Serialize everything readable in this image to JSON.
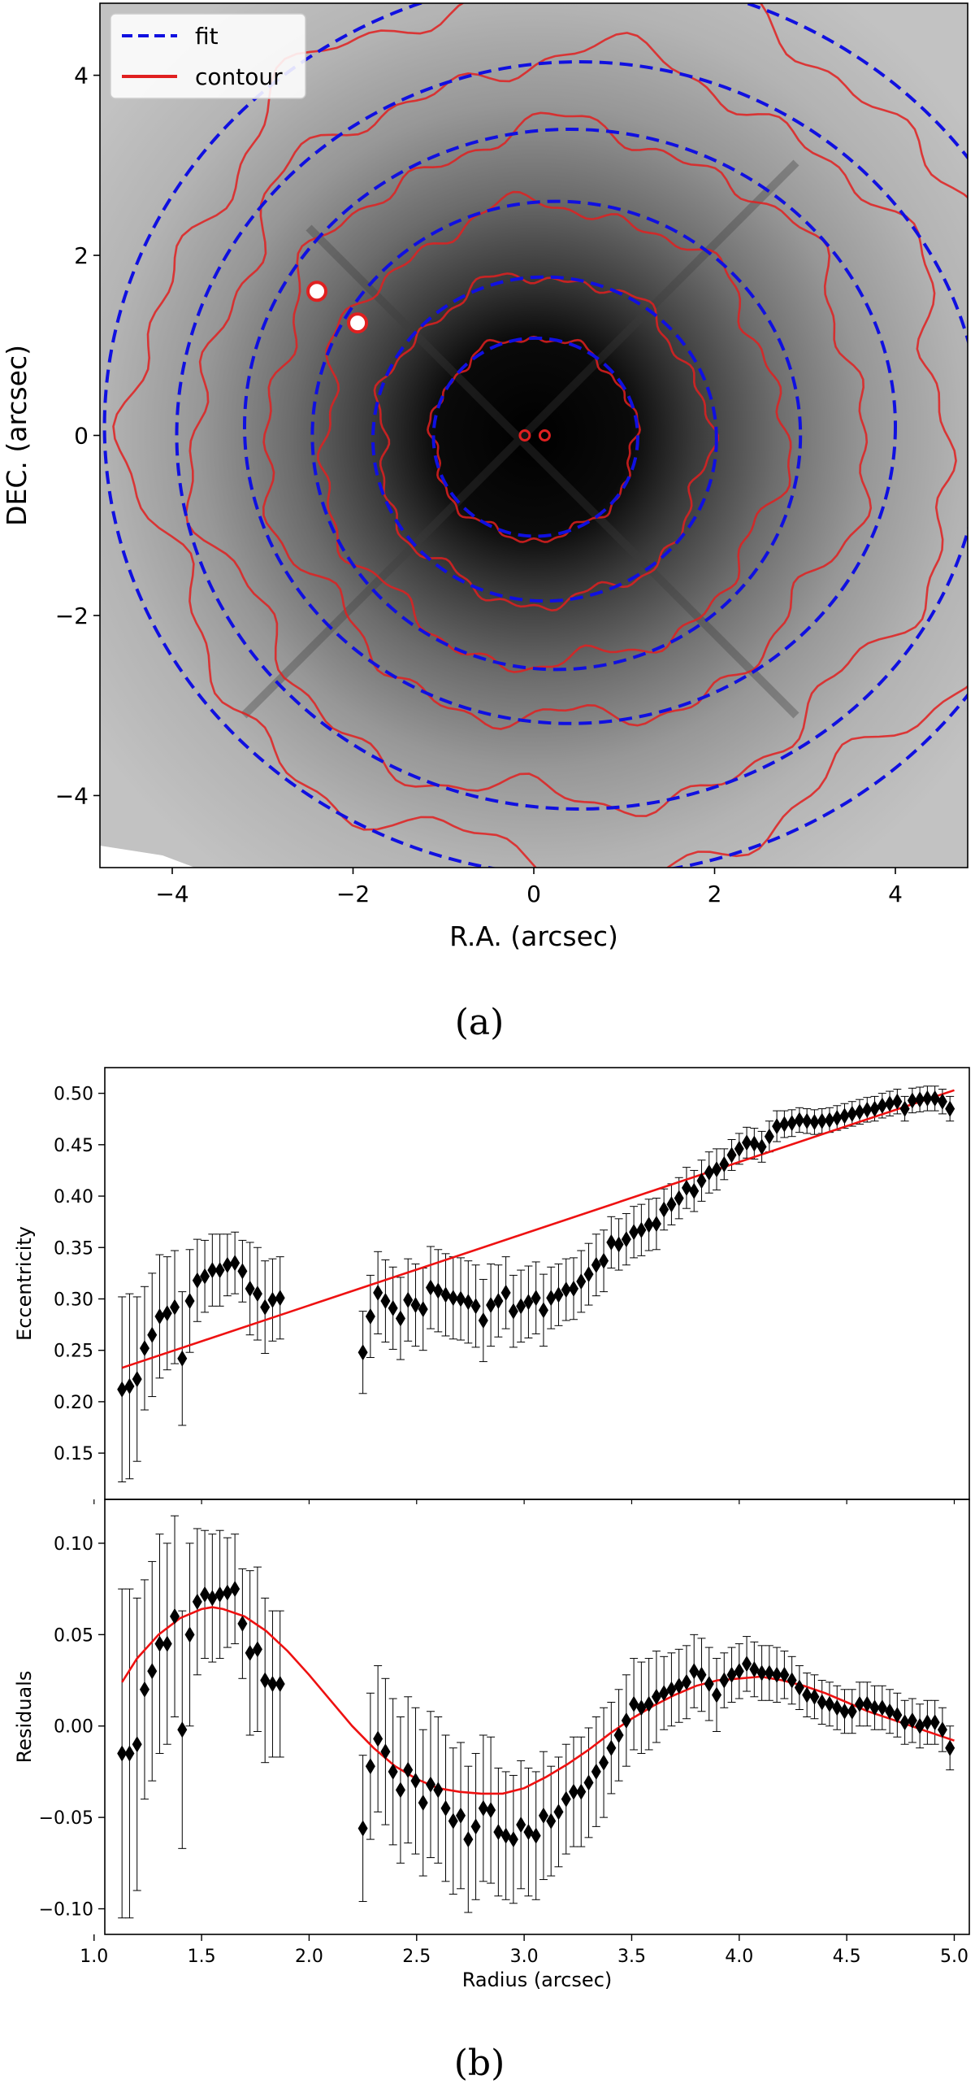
{
  "colors": {
    "fit": "#1010e0",
    "contour": "#e02020",
    "model": "#ee1111",
    "points": "#000000"
  },
  "panel_a": {
    "caption": "(a)",
    "legend": [
      {
        "label": "fit",
        "style": "dashed-blue"
      },
      {
        "label": "contour",
        "style": "solid-red"
      }
    ]
  },
  "panel_b": {
    "caption": "(b)"
  },
  "chart_data": [
    {
      "type": "image",
      "id": "image-map",
      "xlabel": "R.A. (arcsec)",
      "ylabel": "DEC. (arcsec)",
      "xlim": [
        -4.8,
        4.8
      ],
      "ylim": [
        -4.8,
        4.8
      ],
      "xticks": [
        -4,
        -2,
        0,
        2,
        4
      ],
      "yticks": [
        -4,
        -2,
        0,
        2,
        4
      ],
      "xtick_labels": [
        "−4",
        "−2",
        "0",
        "2",
        "4"
      ],
      "ytick_labels": [
        "−4",
        "−2",
        "0",
        "2",
        "4"
      ],
      "fit_ellipses": [
        {
          "cx": 0.02,
          "cy": -0.02,
          "a": 1.13,
          "b": 1.1
        },
        {
          "cx": 0.12,
          "cy": -0.04,
          "a": 1.9,
          "b": 1.8
        },
        {
          "cx": 0.25,
          "cy": 0.0,
          "a": 2.7,
          "b": 2.6
        },
        {
          "cx": 0.4,
          "cy": 0.1,
          "a": 3.6,
          "b": 3.3
        },
        {
          "cx": 0.5,
          "cy": 0.0,
          "a": 4.45,
          "b": 4.15
        },
        {
          "cx": 0.55,
          "cy": 0.1,
          "a": 5.3,
          "b": 5.0
        }
      ],
      "contour_levels": [
        {
          "cx": 0.0,
          "cy": -0.03,
          "r": 1.12
        },
        {
          "cx": 0.1,
          "cy": -0.05,
          "r": 1.82
        },
        {
          "cx": 0.2,
          "cy": 0.0,
          "r": 2.55
        },
        {
          "cx": 0.35,
          "cy": 0.1,
          "r": 3.3
        },
        {
          "cx": 0.45,
          "cy": 0.05,
          "r": 4.15
        },
        {
          "cx": 0.55,
          "cy": 0.1,
          "r": 4.9
        }
      ],
      "sources": [
        {
          "x": -2.4,
          "y": 1.6
        },
        {
          "x": -1.95,
          "y": 1.25
        },
        {
          "x": -0.1,
          "y": 0.0
        },
        {
          "x": 0.12,
          "y": 0.0
        }
      ]
    },
    {
      "type": "scatter",
      "id": "eccentricity",
      "ylabel": "Eccentricity",
      "xlim": [
        1.05,
        5.07
      ],
      "ylim": [
        0.105,
        0.525
      ],
      "yticks": [
        0.15,
        0.2,
        0.25,
        0.3,
        0.35,
        0.4,
        0.45,
        0.5
      ],
      "ytick_labels": [
        "0.15",
        "0.20",
        "0.25",
        "0.30",
        "0.35",
        "0.40",
        "0.45",
        "0.50"
      ],
      "model_line": {
        "x": [
          1.13,
          5.0
        ],
        "y": [
          0.233,
          0.503
        ]
      },
      "x": [
        1.13,
        1.165,
        1.2,
        1.235,
        1.27,
        1.305,
        1.34,
        1.375,
        1.41,
        1.445,
        1.48,
        1.515,
        1.55,
        1.585,
        1.62,
        1.655,
        1.69,
        1.725,
        1.76,
        1.795,
        1.83,
        1.865,
        2.25,
        2.285,
        2.32,
        2.355,
        2.39,
        2.425,
        2.46,
        2.495,
        2.53,
        2.565,
        2.6,
        2.635,
        2.67,
        2.705,
        2.74,
        2.775,
        2.81,
        2.845,
        2.88,
        2.915,
        2.95,
        2.985,
        3.02,
        3.055,
        3.09,
        3.125,
        3.16,
        3.195,
        3.23,
        3.265,
        3.3,
        3.335,
        3.37,
        3.405,
        3.44,
        3.475,
        3.51,
        3.545,
        3.58,
        3.615,
        3.65,
        3.685,
        3.72,
        3.755,
        3.79,
        3.825,
        3.86,
        3.895,
        3.93,
        3.965,
        4.0,
        4.035,
        4.07,
        4.105,
        4.14,
        4.175,
        4.21,
        4.245,
        4.28,
        4.315,
        4.35,
        4.385,
        4.42,
        4.455,
        4.49,
        4.525,
        4.56,
        4.595,
        4.63,
        4.665,
        4.7,
        4.735,
        4.77,
        4.805,
        4.84,
        4.875,
        4.91,
        4.945,
        4.98
      ],
      "y": [
        0.212,
        0.215,
        0.222,
        0.252,
        0.265,
        0.283,
        0.286,
        0.292,
        0.242,
        0.298,
        0.318,
        0.322,
        0.328,
        0.328,
        0.333,
        0.335,
        0.327,
        0.31,
        0.305,
        0.292,
        0.299,
        0.301,
        0.248,
        0.283,
        0.306,
        0.298,
        0.291,
        0.281,
        0.299,
        0.294,
        0.29,
        0.311,
        0.308,
        0.304,
        0.301,
        0.3,
        0.297,
        0.293,
        0.279,
        0.294,
        0.298,
        0.306,
        0.288,
        0.293,
        0.297,
        0.301,
        0.289,
        0.301,
        0.304,
        0.309,
        0.31,
        0.317,
        0.324,
        0.333,
        0.337,
        0.355,
        0.353,
        0.358,
        0.365,
        0.367,
        0.372,
        0.373,
        0.387,
        0.392,
        0.398,
        0.408,
        0.405,
        0.415,
        0.423,
        0.426,
        0.431,
        0.44,
        0.446,
        0.452,
        0.451,
        0.448,
        0.458,
        0.468,
        0.47,
        0.471,
        0.474,
        0.473,
        0.472,
        0.473,
        0.474,
        0.476,
        0.478,
        0.48,
        0.482,
        0.484,
        0.485,
        0.488,
        0.49,
        0.492,
        0.485,
        0.493,
        0.494,
        0.495,
        0.495,
        0.492,
        0.485
      ],
      "err": [
        0.09,
        0.09,
        0.08,
        0.06,
        0.06,
        0.06,
        0.055,
        0.055,
        0.065,
        0.05,
        0.04,
        0.035,
        0.035,
        0.035,
        0.03,
        0.03,
        0.03,
        0.045,
        0.045,
        0.045,
        0.04,
        0.04,
        0.04,
        0.04,
        0.04,
        0.04,
        0.04,
        0.04,
        0.04,
        0.04,
        0.04,
        0.04,
        0.04,
        0.04,
        0.04,
        0.04,
        0.04,
        0.04,
        0.04,
        0.04,
        0.035,
        0.035,
        0.035,
        0.035,
        0.035,
        0.035,
        0.035,
        0.03,
        0.03,
        0.03,
        0.03,
        0.03,
        0.03,
        0.03,
        0.03,
        0.025,
        0.025,
        0.025,
        0.025,
        0.025,
        0.025,
        0.025,
        0.02,
        0.02,
        0.02,
        0.02,
        0.02,
        0.02,
        0.02,
        0.02,
        0.015,
        0.015,
        0.015,
        0.015,
        0.015,
        0.015,
        0.015,
        0.015,
        0.013,
        0.013,
        0.012,
        0.012,
        0.012,
        0.012,
        0.012,
        0.012,
        0.012,
        0.012,
        0.012,
        0.012,
        0.012,
        0.012,
        0.012,
        0.012,
        0.012,
        0.012,
        0.012,
        0.012,
        0.012,
        0.012,
        0.012
      ]
    },
    {
      "type": "scatter",
      "id": "residuals",
      "xlabel": "Radius (arcsec)",
      "ylabel": "Residuals",
      "xlim": [
        1.05,
        5.07
      ],
      "ylim": [
        -0.114,
        0.124
      ],
      "xticks": [
        1.0,
        1.5,
        2.0,
        2.5,
        3.0,
        3.5,
        4.0,
        4.5,
        5.0
      ],
      "xtick_labels": [
        "1.0",
        "1.5",
        "2.0",
        "2.5",
        "3.0",
        "3.5",
        "4.0",
        "4.5",
        "5.0"
      ],
      "yticks": [
        -0.1,
        -0.05,
        0.0,
        0.05,
        0.1
      ],
      "ytick_labels": [
        "−0.10",
        "−0.05",
        "0.00",
        "0.05",
        "0.10"
      ],
      "model_curve": {
        "x": [
          1.13,
          1.2,
          1.3,
          1.4,
          1.5,
          1.55,
          1.6,
          1.7,
          1.8,
          1.9,
          2.0,
          2.1,
          2.2,
          2.3,
          2.4,
          2.5,
          2.6,
          2.7,
          2.8,
          2.9,
          3.0,
          3.1,
          3.2,
          3.3,
          3.4,
          3.5,
          3.6,
          3.7,
          3.8,
          3.9,
          4.0,
          4.1,
          4.2,
          4.3,
          4.4,
          4.5,
          4.6,
          4.7,
          4.8,
          4.9,
          5.0
        ],
        "y": [
          0.024,
          0.037,
          0.05,
          0.059,
          0.064,
          0.065,
          0.064,
          0.06,
          0.052,
          0.041,
          0.028,
          0.014,
          0.0,
          -0.012,
          -0.022,
          -0.029,
          -0.034,
          -0.036,
          -0.037,
          -0.037,
          -0.034,
          -0.028,
          -0.021,
          -0.013,
          -0.004,
          0.004,
          0.011,
          0.017,
          0.022,
          0.025,
          0.026,
          0.027,
          0.025,
          0.022,
          0.018,
          0.013,
          0.008,
          0.004,
          0.0,
          -0.004,
          -0.008
        ]
      },
      "x": [
        1.13,
        1.165,
        1.2,
        1.235,
        1.27,
        1.305,
        1.34,
        1.375,
        1.41,
        1.445,
        1.48,
        1.515,
        1.55,
        1.585,
        1.62,
        1.655,
        1.69,
        1.725,
        1.76,
        1.795,
        1.83,
        1.865,
        2.25,
        2.285,
        2.32,
        2.355,
        2.39,
        2.425,
        2.46,
        2.495,
        2.53,
        2.565,
        2.6,
        2.635,
        2.67,
        2.705,
        2.74,
        2.775,
        2.81,
        2.845,
        2.88,
        2.915,
        2.95,
        2.985,
        3.02,
        3.055,
        3.09,
        3.125,
        3.16,
        3.195,
        3.23,
        3.265,
        3.3,
        3.335,
        3.37,
        3.405,
        3.44,
        3.475,
        3.51,
        3.545,
        3.58,
        3.615,
        3.65,
        3.685,
        3.72,
        3.755,
        3.79,
        3.825,
        3.86,
        3.895,
        3.93,
        3.965,
        4.0,
        4.035,
        4.07,
        4.105,
        4.14,
        4.175,
        4.21,
        4.245,
        4.28,
        4.315,
        4.35,
        4.385,
        4.42,
        4.455,
        4.49,
        4.525,
        4.56,
        4.595,
        4.63,
        4.665,
        4.7,
        4.735,
        4.77,
        4.805,
        4.84,
        4.875,
        4.91,
        4.945,
        4.98
      ],
      "y": [
        -0.015,
        -0.015,
        -0.01,
        0.02,
        0.03,
        0.045,
        0.045,
        0.06,
        -0.002,
        0.05,
        0.068,
        0.072,
        0.07,
        0.072,
        0.073,
        0.075,
        0.056,
        0.04,
        0.042,
        0.025,
        0.023,
        0.023,
        -0.056,
        -0.022,
        -0.007,
        -0.014,
        -0.025,
        -0.035,
        -0.024,
        -0.03,
        -0.042,
        -0.032,
        -0.035,
        -0.045,
        -0.052,
        -0.049,
        -0.062,
        -0.055,
        -0.045,
        -0.046,
        -0.058,
        -0.06,
        -0.062,
        -0.054,
        -0.058,
        -0.06,
        -0.049,
        -0.052,
        -0.047,
        -0.04,
        -0.036,
        -0.036,
        -0.031,
        -0.025,
        -0.02,
        -0.012,
        -0.005,
        0.003,
        0.012,
        0.01,
        0.012,
        0.016,
        0.018,
        0.02,
        0.022,
        0.024,
        0.03,
        0.028,
        0.023,
        0.017,
        0.025,
        0.028,
        0.03,
        0.034,
        0.031,
        0.029,
        0.029,
        0.028,
        0.028,
        0.025,
        0.021,
        0.017,
        0.016,
        0.013,
        0.012,
        0.01,
        0.008,
        0.008,
        0.012,
        0.012,
        0.01,
        0.01,
        0.008,
        0.006,
        0.002,
        0.003,
        0.0,
        0.002,
        0.002,
        -0.002,
        -0.012
      ],
      "err": [
        0.09,
        0.09,
        0.08,
        0.06,
        0.06,
        0.06,
        0.055,
        0.055,
        0.065,
        0.05,
        0.04,
        0.035,
        0.035,
        0.035,
        0.03,
        0.03,
        0.03,
        0.045,
        0.045,
        0.045,
        0.04,
        0.04,
        0.04,
        0.04,
        0.04,
        0.04,
        0.04,
        0.04,
        0.04,
        0.04,
        0.04,
        0.04,
        0.04,
        0.04,
        0.04,
        0.04,
        0.04,
        0.04,
        0.04,
        0.04,
        0.035,
        0.035,
        0.035,
        0.035,
        0.035,
        0.035,
        0.035,
        0.03,
        0.03,
        0.03,
        0.03,
        0.03,
        0.03,
        0.03,
        0.03,
        0.025,
        0.025,
        0.025,
        0.025,
        0.025,
        0.025,
        0.025,
        0.02,
        0.02,
        0.02,
        0.02,
        0.02,
        0.02,
        0.02,
        0.02,
        0.015,
        0.015,
        0.015,
        0.015,
        0.015,
        0.015,
        0.015,
        0.015,
        0.013,
        0.013,
        0.012,
        0.012,
        0.012,
        0.012,
        0.012,
        0.012,
        0.012,
        0.012,
        0.012,
        0.012,
        0.012,
        0.012,
        0.012,
        0.012,
        0.012,
        0.012,
        0.012,
        0.012,
        0.012,
        0.012,
        0.012
      ]
    }
  ]
}
